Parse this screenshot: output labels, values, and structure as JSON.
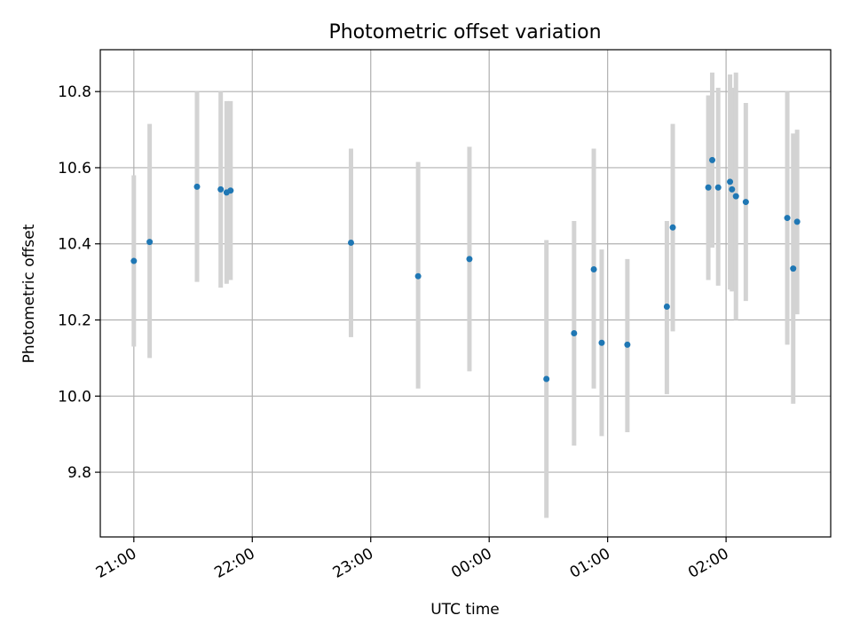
{
  "chart_data": {
    "type": "scatter",
    "title": "Photometric offset variation",
    "xlabel": "UTC time",
    "ylabel": "Photometric offset",
    "x_unit": "UTC time (day 1 = evening, day 2 = after midnight)",
    "xlim": [
      "20:43",
      "02:53"
    ],
    "ylim": [
      9.63,
      10.91
    ],
    "x_ticks": [
      "21:00",
      "22:00",
      "23:00",
      "00:00",
      "01:00",
      "02:00"
    ],
    "y_ticks": [
      9.8,
      10.0,
      10.2,
      10.4,
      10.6,
      10.8
    ],
    "grid": true,
    "colors": {
      "point": "#1f77b4",
      "errorbar": "#d3d3d3",
      "grid": "#b0b0b0"
    },
    "points": [
      {
        "x": "21:00",
        "y": 10.355,
        "ylow": 10.13,
        "yhigh": 10.58
      },
      {
        "x": "21:08",
        "y": 10.405,
        "ylow": 10.1,
        "yhigh": 10.715
      },
      {
        "x": "21:32",
        "y": 10.55,
        "ylow": 10.3,
        "yhigh": 10.8
      },
      {
        "x": "21:44",
        "y": 10.543,
        "ylow": 10.285,
        "yhigh": 10.8
      },
      {
        "x": "21:47",
        "y": 10.535,
        "ylow": 10.295,
        "yhigh": 10.775
      },
      {
        "x": "21:49",
        "y": 10.54,
        "ylow": 10.305,
        "yhigh": 10.775
      },
      {
        "x": "22:50",
        "y": 10.403,
        "ylow": 10.155,
        "yhigh": 10.65
      },
      {
        "x": "23:24",
        "y": 10.315,
        "ylow": 10.02,
        "yhigh": 10.615
      },
      {
        "x": "23:50",
        "y": 10.36,
        "ylow": 10.065,
        "yhigh": 10.655
      },
      {
        "x": "00:29",
        "y": 10.045,
        "ylow": 9.68,
        "yhigh": 10.41
      },
      {
        "x": "00:43",
        "y": 10.165,
        "ylow": 9.87,
        "yhigh": 10.46
      },
      {
        "x": "00:53",
        "y": 10.333,
        "ylow": 10.02,
        "yhigh": 10.65
      },
      {
        "x": "00:57",
        "y": 10.14,
        "ylow": 9.895,
        "yhigh": 10.385
      },
      {
        "x": "01:10",
        "y": 10.135,
        "ylow": 9.905,
        "yhigh": 10.36
      },
      {
        "x": "01:30",
        "y": 10.235,
        "ylow": 10.005,
        "yhigh": 10.46
      },
      {
        "x": "01:33",
        "y": 10.443,
        "ylow": 10.17,
        "yhigh": 10.715
      },
      {
        "x": "01:51",
        "y": 10.548,
        "ylow": 10.305,
        "yhigh": 10.79
      },
      {
        "x": "01:53",
        "y": 10.62,
        "ylow": 10.39,
        "yhigh": 10.85
      },
      {
        "x": "01:56",
        "y": 10.548,
        "ylow": 10.29,
        "yhigh": 10.81
      },
      {
        "x": "02:02",
        "y": 10.563,
        "ylow": 10.28,
        "yhigh": 10.845
      },
      {
        "x": "02:03",
        "y": 10.543,
        "ylow": 10.275,
        "yhigh": 10.81
      },
      {
        "x": "02:05",
        "y": 10.525,
        "ylow": 10.2,
        "yhigh": 10.85
      },
      {
        "x": "02:10",
        "y": 10.51,
        "ylow": 10.25,
        "yhigh": 10.77
      },
      {
        "x": "02:31",
        "y": 10.468,
        "ylow": 10.135,
        "yhigh": 10.8
      },
      {
        "x": "02:34",
        "y": 10.335,
        "ylow": 9.98,
        "yhigh": 10.69
      },
      {
        "x": "02:36",
        "y": 10.458,
        "ylow": 10.215,
        "yhigh": 10.7
      }
    ]
  }
}
